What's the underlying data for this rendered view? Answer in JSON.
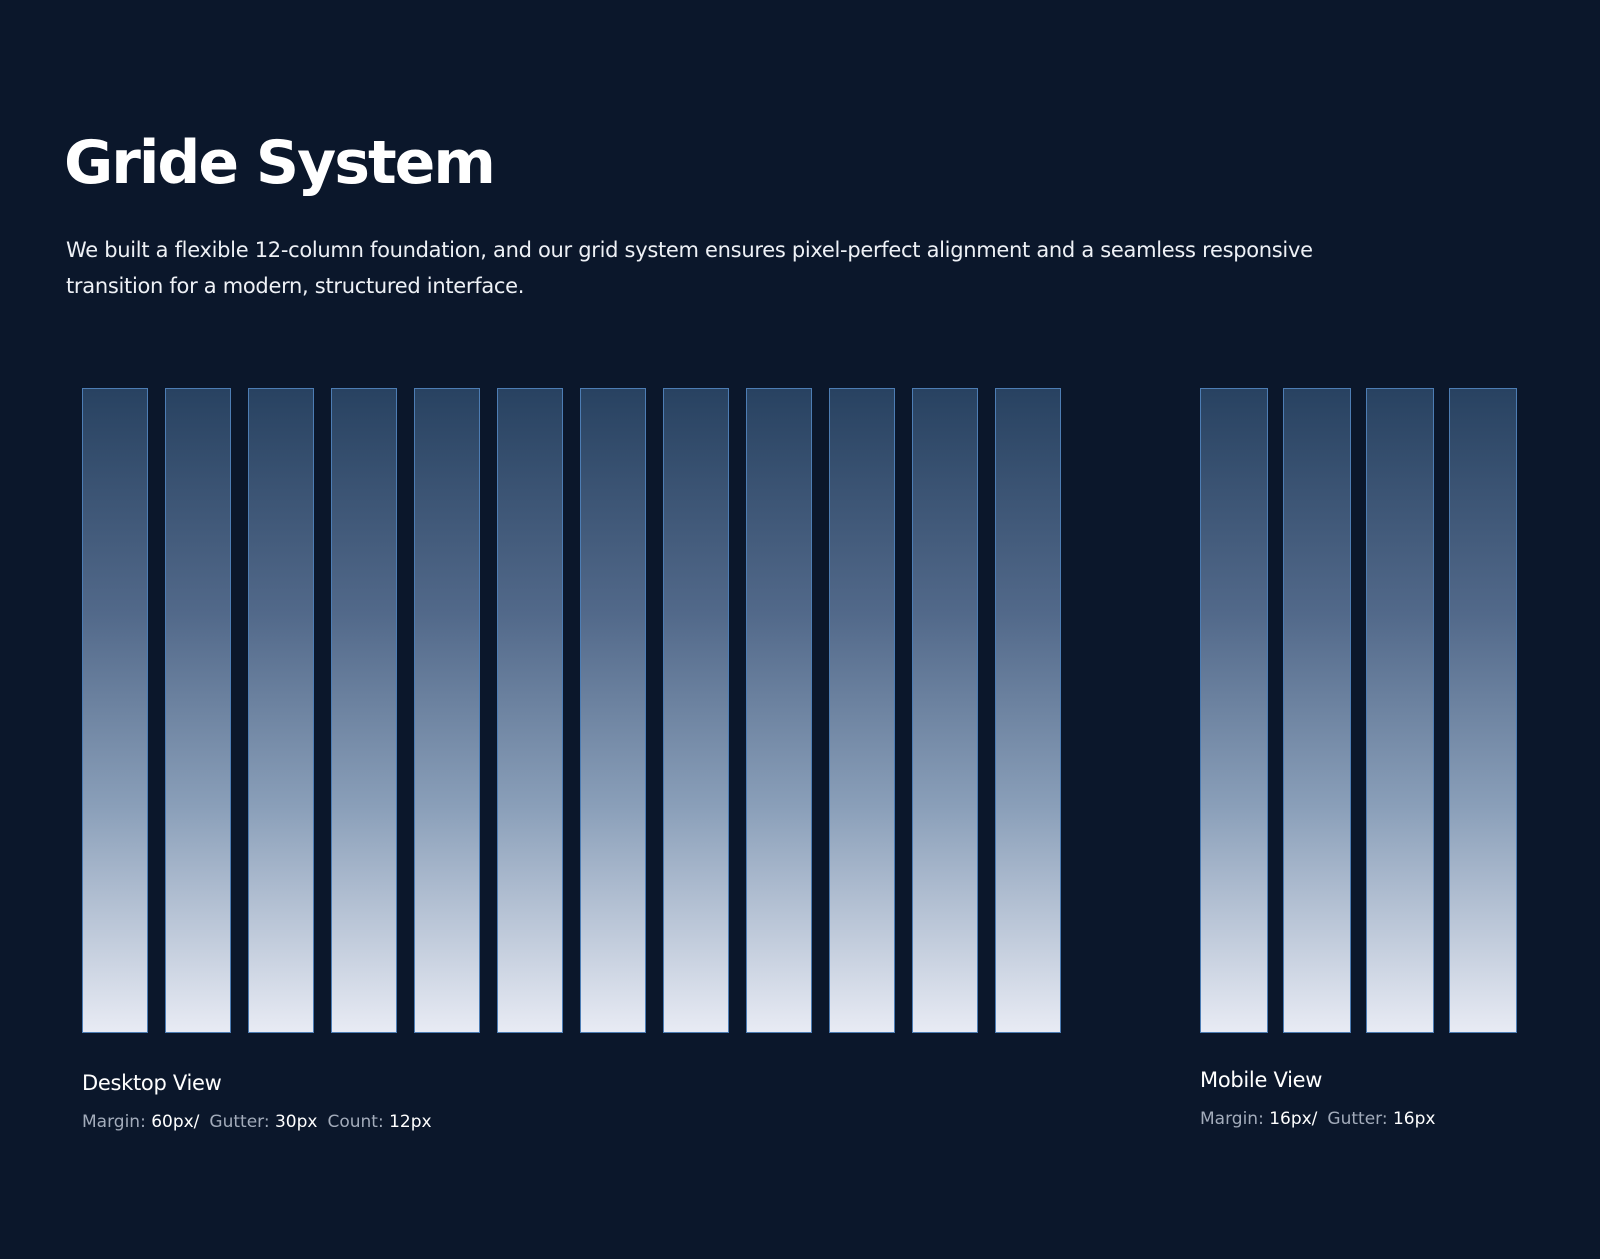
{
  "header": {
    "title": "Gride System",
    "description": "We built a flexible 12-column foundation, and our grid system ensures pixel-perfect alignment and a seamless responsive transition for a modern, structured interface."
  },
  "desktop": {
    "label": "Desktop View",
    "specs": [
      {
        "label": "Margin:",
        "value": "60px/"
      },
      {
        "label": "Gutter:",
        "value": "30px"
      },
      {
        "label": "Count:",
        "value": "12px"
      }
    ]
  },
  "mobile": {
    "label": "Mobile View",
    "specs": [
      {
        "label": "Margin:",
        "value": "16px/"
      },
      {
        "label": "Gutter:",
        "value": "16px"
      }
    ]
  }
}
